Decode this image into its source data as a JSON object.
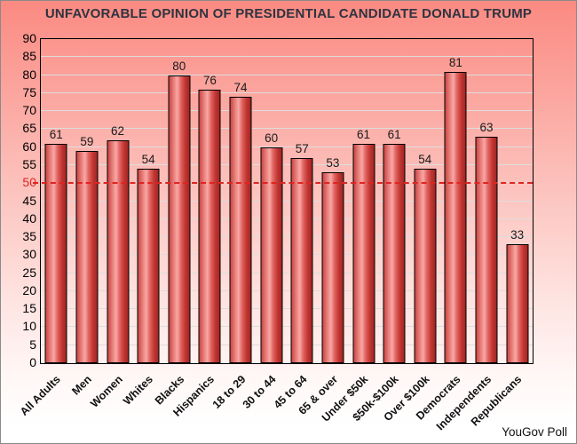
{
  "page": {
    "attribution": "YouGov Poll"
  },
  "colors": {
    "background_top": "#fb8a82",
    "background_bottom": "#ffffff",
    "bar_fill_edge_dark": "#a02723",
    "bar_fill_highlight": "#f9a8a5",
    "bar_outline": "#000000",
    "gridline": "#dddddd",
    "reference_line": "#e02420",
    "reference_tick_label": "#e02420",
    "title_color": "#2e3440",
    "axis_label_color": "#000000"
  },
  "chart_data": {
    "type": "bar",
    "title": "UNFAVORABLE OPINION OF PRESIDENTIAL CANDIDATE DONALD TRUMP",
    "categories": [
      "All Adults",
      "Men",
      "Women",
      "Whites",
      "Blacks",
      "Hispanics",
      "18 to 29",
      "30 to 44",
      "45 to 64",
      "65 & over",
      "Under $50k",
      "$50k-$100k",
      "Over $100k",
      "Democrats",
      "Independents",
      "Republicans"
    ],
    "values": [
      61,
      59,
      62,
      54,
      80,
      76,
      74,
      60,
      57,
      53,
      61,
      61,
      54,
      81,
      63,
      33
    ],
    "xlabel": "",
    "ylabel": "",
    "ylim": [
      0,
      90
    ],
    "ytick_step": 5,
    "reference_line_y": 50,
    "grid": true,
    "legend": "none",
    "source": "YouGov Poll"
  }
}
